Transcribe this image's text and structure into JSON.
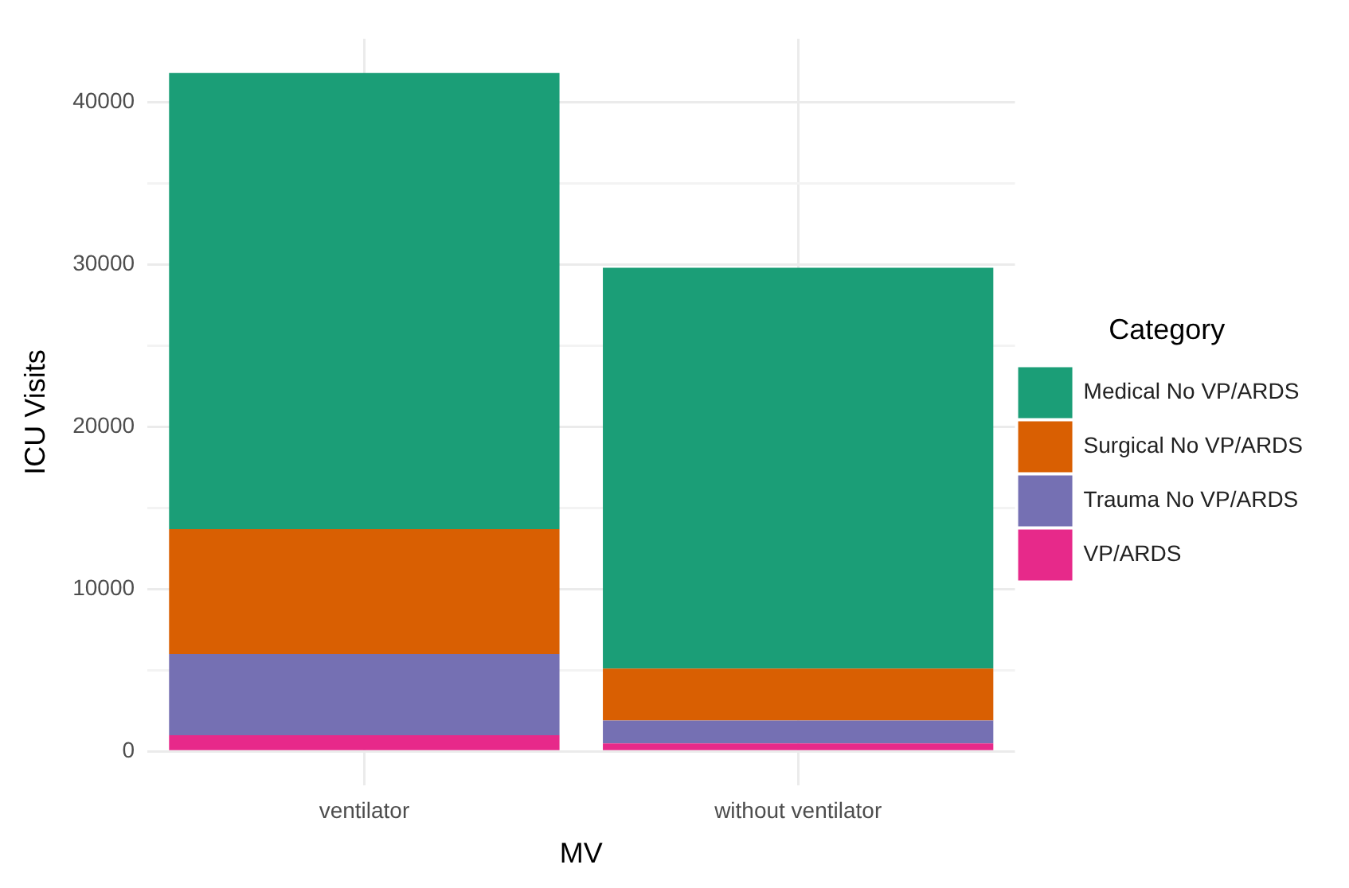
{
  "chart_data": {
    "type": "bar",
    "stacked": true,
    "xlabel": "MV",
    "ylabel": "ICU Visits",
    "legend_title": "Category",
    "legend": "right",
    "grid": true,
    "categories": [
      "ventilator",
      "without ventilator"
    ],
    "series": [
      {
        "name": "VP/ARDS",
        "color": "#e7298a",
        "values": [
          1000,
          500
        ]
      },
      {
        "name": "Trauma No VP/ARDS",
        "color": "#7570b3",
        "values": [
          5000,
          1400
        ]
      },
      {
        "name": "Surgical No VP/ARDS",
        "color": "#d95f02",
        "values": [
          7700,
          3200
        ]
      },
      {
        "name": "Medical No VP/ARDS",
        "color": "#1b9e77",
        "values": [
          28100,
          24700
        ]
      }
    ],
    "ylim": [
      -2100,
      43900
    ],
    "yticks": [
      0,
      {
        "value": 5000,
        "label": null
      },
      10000,
      {
        "value": 15000,
        "label": null
      },
      20000,
      {
        "value": 25000,
        "label": null
      },
      30000,
      {
        "value": 35000,
        "label": null
      },
      40000
    ]
  }
}
